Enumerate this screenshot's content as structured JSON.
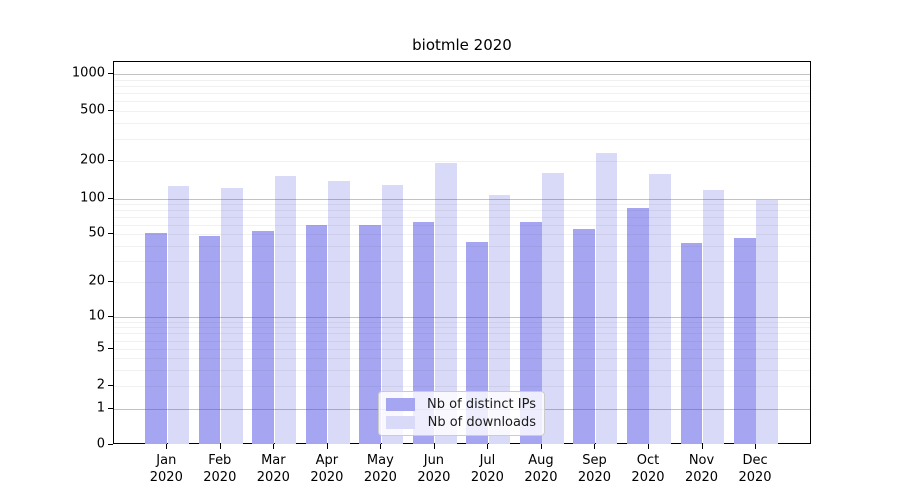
{
  "chart_data": {
    "type": "bar",
    "title": "biotmle 2020",
    "categories": [
      "Jan 2020",
      "Feb 2020",
      "Mar 2020",
      "Apr 2020",
      "May 2020",
      "Jun 2020",
      "Jul 2020",
      "Aug 2020",
      "Sep 2020",
      "Oct 2020",
      "Nov 2020",
      "Dec 2020"
    ],
    "series": [
      {
        "name": "Nb of distinct IPs",
        "color": "#a5a5f2",
        "values": [
          51,
          48,
          53,
          60,
          60,
          64,
          43,
          64,
          55,
          83,
          42,
          46
        ]
      },
      {
        "name": "Nb of downloads",
        "color": "#d9d9f8",
        "values": [
          126,
          123,
          152,
          138,
          130,
          193,
          107,
          160,
          232,
          157,
          118,
          99
        ]
      }
    ],
    "xlabel": "",
    "ylabel": "",
    "yscale": "symlog",
    "yticks": [
      0,
      1,
      2,
      5,
      10,
      20,
      50,
      100,
      200,
      500,
      1000
    ],
    "ylim": [
      0,
      1250
    ],
    "grid": "horizontal, major and minor, drawn over translucent bars",
    "legend_position": "inside bottom-center"
  }
}
